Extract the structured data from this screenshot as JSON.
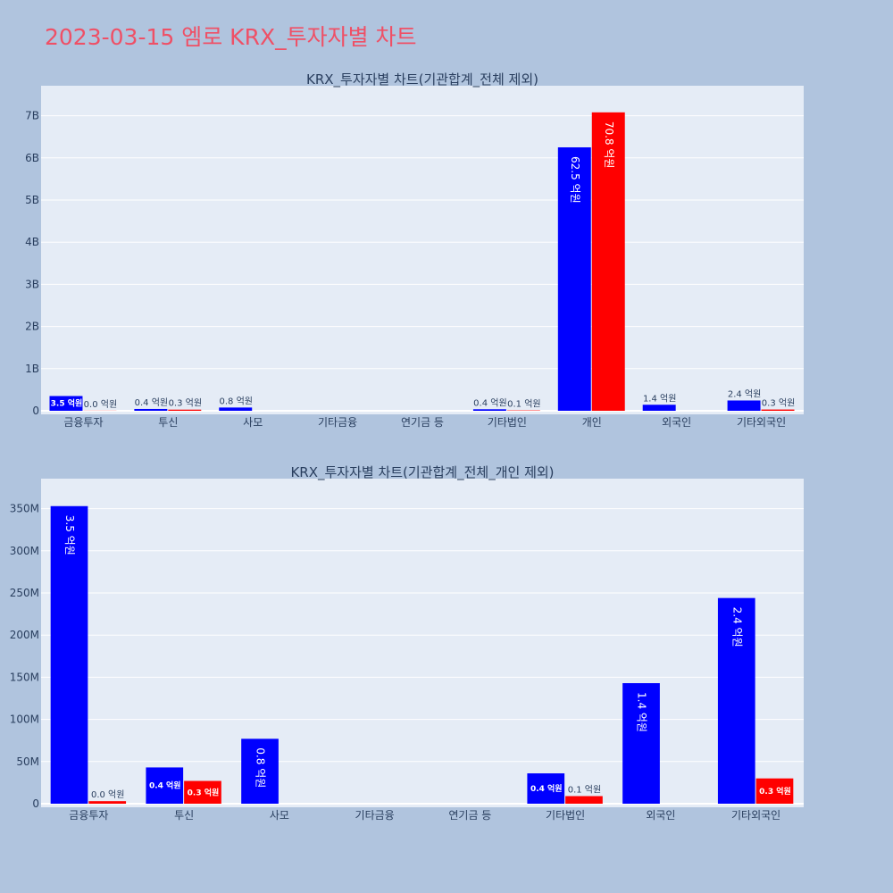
{
  "page": {
    "title": "2023-03-15 엠로 KRX_투자자별 차트",
    "title_color": "#ef5066",
    "background": "#b0c4de",
    "plot_background": "#e5ecf6",
    "buy_color": "#0000ff",
    "sell_color": "#ff0000"
  },
  "chart_data": [
    {
      "type": "bar",
      "title": "KRX_투자자별 차트(기관합계_전체 제외)",
      "categories": [
        "금융투자",
        "투신",
        "사모",
        "기타금융",
        "연기금 등",
        "기타법인",
        "개인",
        "외국인",
        "기타외국인"
      ],
      "series": [
        {
          "color": "#0000ff",
          "values": [
            350000000,
            43000000,
            77000000,
            0,
            0,
            36000000,
            6250000000,
            143000000,
            244000000
          ],
          "labels": [
            "3.5 억원",
            "0.4 억원",
            "0.8 억원",
            "",
            "",
            "0.4 억원",
            "62.5 억원",
            "1.4 억원",
            "2.4 억원"
          ]
        },
        {
          "color": "#ff0000",
          "values": [
            3000000,
            27000000,
            0,
            0,
            0,
            9000000,
            7080000000,
            0,
            30000000
          ],
          "labels": [
            "0.0 억원",
            "0.3 억원",
            "",
            "",
            "",
            "0.1 억원",
            "70.8 억원",
            "",
            "0.3 억원"
          ]
        }
      ],
      "ylim": [
        0,
        7500000000
      ],
      "yticks": [
        0,
        1000000000,
        2000000000,
        3000000000,
        4000000000,
        5000000000,
        6000000000,
        7000000000
      ],
      "ytick_labels": [
        "0",
        "1B",
        "2B",
        "3B",
        "4B",
        "5B",
        "6B",
        "7B"
      ],
      "grid": true
    },
    {
      "type": "bar",
      "title": "KRX_투자자별 차트(기관합계_전체_개인 제외)",
      "categories": [
        "금융투자",
        "투신",
        "사모",
        "기타금융",
        "연기금 등",
        "기타법인",
        "외국인",
        "기타외국인"
      ],
      "series": [
        {
          "color": "#0000ff",
          "values": [
            353000000,
            43000000,
            77000000,
            0,
            0,
            36000000,
            143000000,
            244000000
          ],
          "labels": [
            "3.5 억원",
            "0.4 억원",
            "0.8 억원",
            "",
            "",
            "0.4 억원",
            "1.4 억원",
            "2.4 억원"
          ]
        },
        {
          "color": "#ff0000",
          "values": [
            3000000,
            27000000,
            0,
            0,
            0,
            9000000,
            0,
            30000000
          ],
          "labels": [
            "0.0 억원",
            "0.3 억원",
            "",
            "",
            "",
            "0.1 억원",
            "",
            "0.3 억원"
          ]
        }
      ],
      "ylim": [
        0,
        375000000
      ],
      "yticks": [
        0,
        50000000,
        100000000,
        150000000,
        200000000,
        250000000,
        300000000,
        350000000
      ],
      "ytick_labels": [
        "0",
        "50M",
        "100M",
        "150M",
        "200M",
        "250M",
        "300M",
        "350M"
      ],
      "grid": true
    }
  ]
}
